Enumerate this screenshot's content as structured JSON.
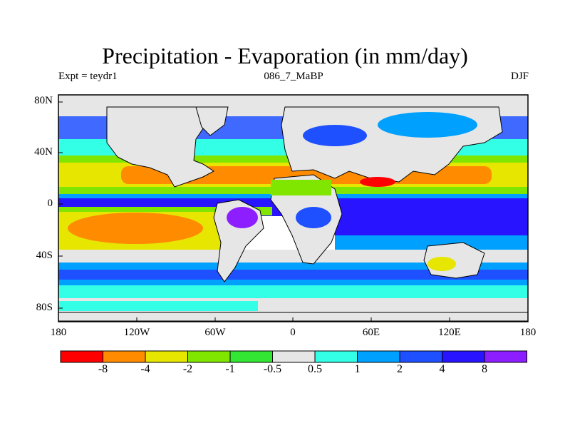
{
  "title": "Precipitation - Evaporation (in mm/day)",
  "left_label": "Expt = teydr1",
  "center_label": "086_7_MaBP",
  "right_label": "DJF",
  "y_ticks": [
    "80N",
    "40N",
    "0",
    "40S",
    "80S"
  ],
  "x_ticks": [
    "180",
    "120W",
    "60W",
    "0",
    "60E",
    "120E",
    "180"
  ],
  "colorbar": {
    "labels": [
      "-8",
      "-4",
      "-2",
      "-1",
      "-0.5",
      "0.5",
      "1",
      "2",
      "4",
      "8"
    ],
    "colors": [
      "#ff0000",
      "#ff8c00",
      "#e6e600",
      "#80e600",
      "#33e633",
      "#e6e6e6",
      "#33ffe6",
      "#00a0ff",
      "#1e50ff",
      "#2814ff",
      "#8c1eff"
    ]
  }
}
